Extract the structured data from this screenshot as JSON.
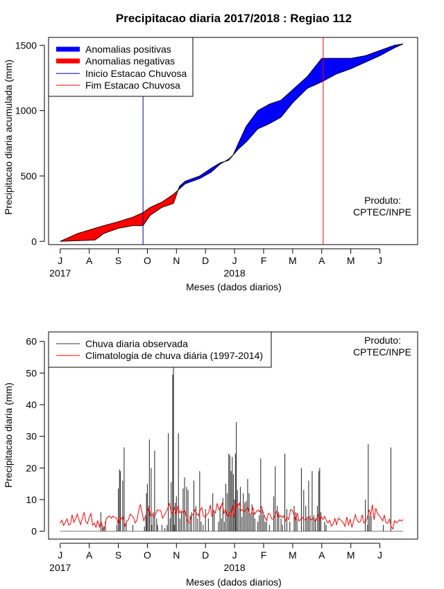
{
  "chart_data": [
    {
      "type": "area",
      "title": "Precipitacao diaria 2017/2018 : Regiao 112",
      "xlabel": "Meses (dados diarios)",
      "ylabel": "Precipitacao diaria acumulada (mm)",
      "ylim": [
        -25,
        1560
      ],
      "yticks": [
        0,
        500,
        1000,
        1500
      ],
      "xlim": [
        -0.4,
        12.3
      ],
      "month_ticks": [
        "J",
        "A",
        "S",
        "O",
        "N",
        "D",
        "J",
        "F",
        "M",
        "A",
        "M",
        "J"
      ],
      "year_labels": [
        {
          "label": "2017",
          "month": 0
        },
        {
          "label": "2018",
          "month": 6
        }
      ],
      "legend": {
        "position": "top-left",
        "items": [
          {
            "label": "Anomalias positivas",
            "color": "#0000ff",
            "kind": "thick"
          },
          {
            "label": "Anomalias negativas",
            "color": "#ff0000",
            "kind": "thick"
          },
          {
            "label": "Inicio Estacao Chuvosa",
            "color": "#00008b",
            "kind": "thin"
          },
          {
            "label": "Fim Estacao Chuvosa",
            "color": "#ff0000",
            "kind": "thin"
          }
        ]
      },
      "vlines": [
        {
          "name": "inicio-estacao-chuvosa",
          "month": 2.85,
          "color": "#00008b"
        },
        {
          "name": "fim-estacao-chuvosa",
          "month": 9.05,
          "color": "#ff0000"
        }
      ],
      "observed_cumulative": {
        "x": [
          0,
          0.6,
          1.2,
          1.5,
          2.0,
          2.5,
          2.85,
          3.1,
          3.5,
          3.9,
          4.1,
          4.3,
          4.8,
          5.2,
          5.5,
          5.8,
          5.95,
          6.15,
          6.4,
          6.8,
          7.2,
          7.6,
          8.0,
          8.5,
          9.0,
          9.5,
          10.0,
          10.5,
          11.0,
          11.5,
          11.8
        ],
        "y": [
          0,
          5,
          10,
          60,
          100,
          120,
          120,
          200,
          260,
          290,
          420,
          460,
          500,
          560,
          600,
          620,
          660,
          760,
          880,
          1000,
          1050,
          1080,
          1160,
          1260,
          1400,
          1400,
          1400,
          1420,
          1460,
          1500,
          1510
        ]
      },
      "climatology_cumulative": {
        "x": [
          0,
          0.6,
          1.2,
          1.5,
          2.0,
          2.5,
          2.85,
          3.1,
          3.5,
          3.9,
          4.1,
          4.3,
          4.8,
          5.2,
          5.5,
          5.8,
          5.95,
          6.15,
          6.4,
          6.8,
          7.2,
          7.6,
          8.0,
          8.5,
          9.0,
          9.5,
          10.0,
          10.5,
          11.0,
          11.5,
          11.8
        ],
        "y": [
          0,
          60,
          100,
          120,
          150,
          185,
          220,
          260,
          300,
          360,
          400,
          440,
          480,
          530,
          590,
          630,
          660,
          710,
          760,
          860,
          900,
          950,
          1060,
          1170,
          1220,
          1280,
          1320,
          1370,
          1420,
          1480,
          1510
        ]
      },
      "annotation": [
        "Produto:",
        "CPTEC/INPE"
      ]
    },
    {
      "type": "bar",
      "xlabel": "Meses (dados diarios)",
      "ylabel": "Precipitacao diaria (mm)",
      "ylim": [
        -2.5,
        63
      ],
      "yticks": [
        0,
        10,
        20,
        30,
        40,
        50,
        60
      ],
      "xlim": [
        -0.4,
        12.3
      ],
      "month_ticks": [
        "J",
        "A",
        "S",
        "O",
        "N",
        "D",
        "J",
        "F",
        "M",
        "A",
        "M",
        "J"
      ],
      "year_labels": [
        {
          "label": "2017",
          "month": 0
        },
        {
          "label": "2018",
          "month": 6
        }
      ],
      "legend": {
        "position": "top-left",
        "items": [
          {
            "label": "Chuva diaria observada",
            "color": "#333333"
          },
          {
            "label": "Climatologia de chuva diária (1997-2014)",
            "color": "#ff0000"
          }
        ]
      },
      "observed_bars": [
        [
          1.4,
          6
        ],
        [
          1.45,
          2
        ],
        [
          1.5,
          1.5
        ],
        [
          1.55,
          3
        ],
        [
          1.95,
          2
        ],
        [
          2.0,
          13.5
        ],
        [
          2.04,
          19.5
        ],
        [
          2.07,
          19
        ],
        [
          2.15,
          16
        ],
        [
          2.2,
          26.5
        ],
        [
          2.27,
          3
        ],
        [
          2.5,
          2
        ],
        [
          2.9,
          1.5
        ],
        [
          2.95,
          4.5
        ],
        [
          2.97,
          12
        ],
        [
          3.0,
          15
        ],
        [
          3.05,
          8
        ],
        [
          3.07,
          29
        ],
        [
          3.13,
          20
        ],
        [
          3.15,
          2
        ],
        [
          3.2,
          6
        ],
        [
          3.25,
          25.5
        ],
        [
          3.32,
          4
        ],
        [
          3.35,
          2
        ],
        [
          3.5,
          2
        ],
        [
          3.6,
          1
        ],
        [
          3.68,
          2
        ],
        [
          3.72,
          31
        ],
        [
          3.78,
          4
        ],
        [
          3.82,
          15.5
        ],
        [
          3.87,
          49.5
        ],
        [
          3.9,
          52
        ],
        [
          3.93,
          2
        ],
        [
          3.96,
          9
        ],
        [
          4.0,
          11
        ],
        [
          4.07,
          31
        ],
        [
          4.12,
          4
        ],
        [
          4.17,
          6
        ],
        [
          4.23,
          13.5
        ],
        [
          4.28,
          17
        ],
        [
          4.35,
          14
        ],
        [
          4.4,
          13
        ],
        [
          4.47,
          5
        ],
        [
          4.52,
          6
        ],
        [
          4.6,
          16
        ],
        [
          4.67,
          8
        ],
        [
          4.73,
          4
        ],
        [
          4.8,
          19
        ],
        [
          4.85,
          3
        ],
        [
          4.92,
          2
        ],
        [
          5.0,
          7
        ],
        [
          5.1,
          4
        ],
        [
          5.25,
          12
        ],
        [
          5.3,
          6
        ],
        [
          5.45,
          3
        ],
        [
          5.5,
          8
        ],
        [
          5.55,
          4
        ],
        [
          5.6,
          10.5
        ],
        [
          5.65,
          3
        ],
        [
          5.7,
          15
        ],
        [
          5.75,
          12
        ],
        [
          5.8,
          24.5
        ],
        [
          5.84,
          24
        ],
        [
          5.88,
          19
        ],
        [
          5.92,
          23.5
        ],
        [
          5.96,
          18
        ],
        [
          6.0,
          10
        ],
        [
          6.03,
          24.5
        ],
        [
          6.06,
          34.5
        ],
        [
          6.1,
          13
        ],
        [
          6.15,
          7.5
        ],
        [
          6.2,
          14
        ],
        [
          6.25,
          4.5
        ],
        [
          6.3,
          12
        ],
        [
          6.35,
          9
        ],
        [
          6.4,
          9.5
        ],
        [
          6.45,
          16.5
        ],
        [
          6.5,
          12
        ],
        [
          6.55,
          5
        ],
        [
          6.6,
          8.5
        ],
        [
          6.65,
          6
        ],
        [
          6.7,
          4
        ],
        [
          6.8,
          3
        ],
        [
          6.85,
          5
        ],
        [
          6.9,
          23
        ],
        [
          6.95,
          7
        ],
        [
          7.0,
          5
        ],
        [
          7.05,
          3
        ],
        [
          7.1,
          3
        ],
        [
          7.2,
          2
        ],
        [
          7.35,
          11
        ],
        [
          7.4,
          20.5
        ],
        [
          7.47,
          8
        ],
        [
          7.52,
          6
        ],
        [
          7.6,
          4
        ],
        [
          7.65,
          2
        ],
        [
          7.73,
          24.5
        ],
        [
          7.8,
          7
        ],
        [
          7.9,
          3
        ],
        [
          8.05,
          8
        ],
        [
          8.1,
          6
        ],
        [
          8.15,
          4
        ],
        [
          8.3,
          20
        ],
        [
          8.38,
          13
        ],
        [
          8.45,
          8
        ],
        [
          8.5,
          4
        ],
        [
          8.55,
          16
        ],
        [
          8.6,
          5
        ],
        [
          8.67,
          19
        ],
        [
          8.73,
          5
        ],
        [
          8.78,
          4
        ],
        [
          8.85,
          8
        ],
        [
          8.9,
          19
        ],
        [
          8.93,
          20
        ],
        [
          8.97,
          6
        ],
        [
          9.1,
          3
        ],
        [
          9.15,
          2
        ],
        [
          10.5,
          10
        ],
        [
          10.58,
          2
        ],
        [
          10.6,
          27.5
        ],
        [
          10.65,
          5
        ],
        [
          10.7,
          5
        ],
        [
          11.12,
          2
        ],
        [
          11.38,
          26.5
        ]
      ],
      "climatology_daily": [
        2.5,
        3.5,
        1.8,
        2.8,
        3.9,
        1.9,
        2.2,
        5.2,
        2.8,
        3.9,
        5.4,
        3.6,
        2.1,
        4.1,
        6.0,
        3.1,
        2.4,
        4.3,
        5.6,
        1.9,
        2.6,
        1.2,
        3.4,
        1.3,
        3.1,
        0.6,
        0.8,
        3.8,
        4.6,
        4.8,
        4.1,
        4.8,
        4.3,
        4.2,
        2.1,
        4.5,
        3.8,
        4.5,
        1.5,
        3.2,
        3.6,
        5.4,
        4.9,
        4.3,
        2.6,
        3.4,
        6.5,
        8.5,
        5.8,
        3.3,
        4.8,
        5.8,
        7.6,
        4.8,
        5.2,
        4.5,
        5.5,
        6.8,
        6.5,
        6.5,
        4.1,
        5.1,
        6.0,
        7.2,
        8.9,
        6.2,
        5.5,
        7.4,
        5.4,
        8.0,
        5.8,
        6.4,
        5.7,
        6.7,
        4.4,
        2.6,
        2.9,
        5.0,
        5.3,
        6.8,
        5.6,
        4.8,
        6.5,
        7.5,
        4.8,
        4.4,
        5.3,
        5.8,
        8.3,
        4.6,
        6.6,
        5.8,
        8.8,
        6.8,
        7.2,
        9.0,
        5.5,
        7.0,
        4.5,
        5.8,
        4.7,
        8.2,
        4.4,
        9.0,
        7.6,
        8.9,
        6.5,
        6.8,
        6.1,
        7.0,
        7.6,
        5.1,
        5.5,
        7.4,
        5.3,
        6.2,
        6.7,
        6.1,
        7.8,
        5.8,
        4.4,
        3.3,
        5.7,
        5.3,
        3.9,
        3.8,
        5.0,
        6.4,
        4.3,
        5.0,
        4.3,
        4.9,
        3.2,
        4.4,
        3.7,
        6.8,
        6.7,
        5.2,
        3.2,
        5.8,
        3.2,
        3.7,
        4.4,
        3.6,
        3.6,
        4.5,
        4.0,
        3.6,
        4.1,
        3.3,
        3.4,
        5.2,
        3.5,
        4.7,
        3.7,
        4.7,
        3.3,
        2.6,
        3.5,
        1.6,
        2.3,
        4.0,
        2.1,
        4.1,
        3.7,
        3.3,
        2.6,
        1.5,
        4.5,
        2.0,
        3.7,
        1.2,
        3.2,
        5.2,
        3.5,
        2.8,
        3.1,
        5.2,
        2.6,
        3.1,
        4.1,
        6.8,
        5.1,
        8.4,
        3.5,
        7.3,
        5.6,
        4.9,
        4.2,
        3.3,
        5.0,
        2.7,
        2.5,
        3.8,
        1.5,
        0.7,
        3.3,
        2.6,
        3.0,
        3.6,
        3.2,
        3.7
      ],
      "annotation": [
        "Produto:",
        "CPTEC/INPE"
      ]
    }
  ]
}
